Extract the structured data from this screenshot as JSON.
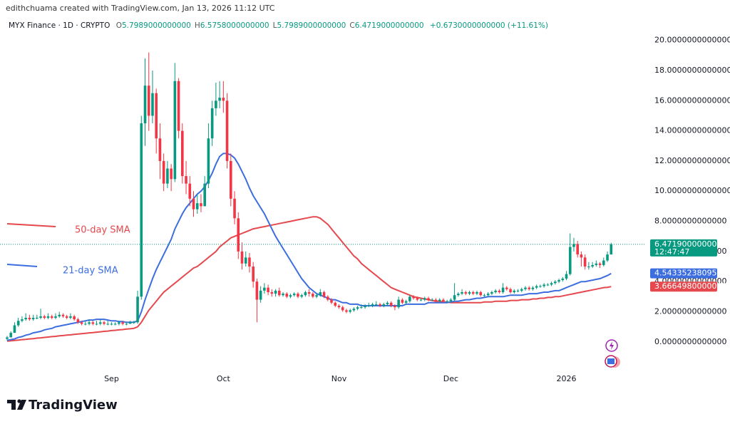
{
  "byline": "edithchuama created with TradingView.com, Jan 13, 2026 11:12 UTC",
  "logo": "TradingView",
  "chart_data": {
    "type": "candlestick",
    "title": "MYX Finance · 1D · CRYPTO",
    "ohlc_legend": [
      {
        "label": "O",
        "value": "5.7989000000000"
      },
      {
        "label": "H",
        "value": "6.5758000000000"
      },
      {
        "label": "L",
        "value": "5.7989000000000"
      },
      {
        "label": "C",
        "value": "6.4719000000000"
      }
    ],
    "change": "+0.6730000000000 (+11.61%)",
    "categories": [
      null,
      null,
      null,
      null,
      null,
      null,
      null,
      null,
      null,
      null,
      null,
      null,
      null,
      null,
      null,
      null,
      null,
      null,
      null,
      null,
      null,
      null,
      null,
      null,
      null,
      null,
      null,
      null,
      "Sep",
      null,
      null,
      null,
      null,
      null,
      null,
      null,
      null,
      null,
      null,
      null,
      null,
      null,
      null,
      null,
      null,
      null,
      null,
      null,
      null,
      null,
      null,
      null,
      null,
      null,
      null,
      null,
      null,
      null,
      "Oct",
      null,
      null,
      null,
      null,
      null,
      null,
      null,
      null,
      null,
      null,
      null,
      null,
      null,
      null,
      null,
      null,
      null,
      null,
      null,
      null,
      null,
      null,
      null,
      null,
      null,
      null,
      null,
      null,
      null,
      null,
      "Nov",
      null,
      null,
      null,
      null,
      null,
      null,
      null,
      null,
      null,
      null,
      null,
      null,
      null,
      null,
      null,
      null,
      null,
      null,
      null,
      null,
      null,
      null,
      null,
      null,
      null,
      null,
      null,
      null,
      null,
      "Dec",
      null,
      null,
      null,
      null,
      null,
      null,
      null,
      null,
      null,
      null,
      null,
      null,
      null,
      null,
      null,
      null,
      null,
      null,
      null,
      null,
      null,
      null,
      null,
      null,
      null,
      null,
      null,
      null,
      null,
      null,
      "2026",
      null,
      null,
      null,
      null,
      null,
      null,
      null,
      null,
      null,
      null,
      null,
      null
    ],
    "ohlc": {
      "up_color": "#089981",
      "down_color": "#f23645",
      "open": [
        0.2,
        0.3,
        0.6,
        1.1,
        1.4,
        1.5,
        1.6,
        1.5,
        1.6,
        1.6,
        1.7,
        1.6,
        1.7,
        1.6,
        1.7,
        1.8,
        1.7,
        1.6,
        1.7,
        1.5,
        1.3,
        1.2,
        1.2,
        1.3,
        1.2,
        1.2,
        1.3,
        1.2,
        1.2,
        1.2,
        1.2,
        1.3,
        1.2,
        1.2,
        1.3,
        1.3,
        3.0,
        14.5,
        17.0,
        15.0,
        16.5,
        13.5,
        12.0,
        10.5,
        11.5,
        10.8,
        17.3,
        14.0,
        11.0,
        10.5,
        9.5,
        8.8,
        9.2,
        9.0,
        10.5,
        13.5,
        15.5,
        16.0,
        16.2,
        16.0,
        12.0,
        9.5,
        8.2,
        6.0,
        5.2,
        5.6,
        5.0,
        4.0,
        2.8,
        3.4,
        3.6,
        3.3,
        3.2,
        3.4,
        3.1,
        3.2,
        3.0,
        3.1,
        3.2,
        3.0,
        3.1,
        3.3,
        3.2,
        3.0,
        3.1,
        3.3,
        3.0,
        2.8,
        2.6,
        2.4,
        2.3,
        2.1,
        2.0,
        2.1,
        2.2,
        2.3,
        2.3,
        2.4,
        2.4,
        2.5,
        2.5,
        2.4,
        2.5,
        2.6,
        2.4,
        2.3,
        2.8,
        2.6,
        2.7,
        3.0,
        2.9,
        2.8,
        2.8,
        2.9,
        2.8,
        2.8,
        2.7,
        2.8,
        2.7,
        2.7,
        2.8,
        3.1,
        3.2,
        3.3,
        3.2,
        3.3,
        3.2,
        3.3,
        3.1,
        3.1,
        3.2,
        3.3,
        3.4,
        3.3,
        3.6,
        3.5,
        3.3,
        3.4,
        3.4,
        3.5,
        3.6,
        3.5,
        3.6,
        3.7,
        3.7,
        3.8,
        3.8,
        3.9,
        4.0,
        4.1,
        4.2,
        4.5,
        6.3,
        6.5,
        5.8,
        5.6,
        5.0,
        5.0,
        5.1,
        5.2,
        5.1,
        5.4,
        5.7989
      ],
      "high": [
        0.4,
        0.7,
        1.3,
        1.6,
        1.7,
        1.9,
        1.8,
        1.8,
        1.8,
        2.2,
        1.8,
        1.9,
        1.8,
        1.9,
        2.0,
        1.9,
        1.8,
        1.9,
        1.8,
        1.6,
        1.4,
        1.4,
        1.5,
        1.4,
        1.4,
        1.5,
        1.4,
        1.4,
        1.3,
        1.3,
        1.4,
        1.4,
        1.3,
        1.4,
        1.4,
        3.4,
        15.0,
        18.8,
        19.2,
        18.0,
        16.8,
        14.5,
        12.5,
        12.0,
        11.8,
        18.5,
        17.5,
        14.5,
        12.0,
        11.0,
        10.0,
        9.8,
        9.8,
        11.0,
        14.5,
        16.0,
        17.2,
        17.3,
        17.3,
        16.5,
        12.5,
        10.0,
        8.6,
        6.6,
        6.0,
        5.9,
        5.3,
        4.2,
        3.7,
        3.9,
        3.8,
        3.5,
        3.5,
        3.6,
        3.3,
        3.3,
        3.2,
        3.3,
        3.3,
        3.2,
        3.4,
        3.5,
        3.3,
        3.2,
        3.5,
        3.4,
        3.1,
        2.9,
        2.7,
        2.5,
        2.4,
        2.2,
        2.2,
        2.3,
        2.4,
        2.5,
        2.5,
        2.6,
        2.6,
        2.7,
        2.6,
        2.6,
        2.7,
        2.7,
        2.5,
        3.0,
        2.9,
        2.8,
        3.1,
        3.1,
        3.0,
        2.9,
        3.0,
        3.0,
        2.9,
        2.9,
        2.9,
        2.9,
        2.8,
        2.9,
        3.9,
        3.3,
        3.5,
        3.4,
        3.4,
        3.4,
        3.4,
        3.4,
        3.2,
        3.3,
        3.4,
        3.5,
        3.5,
        3.9,
        3.7,
        3.6,
        3.5,
        3.5,
        3.6,
        3.7,
        3.7,
        3.7,
        3.8,
        3.8,
        3.9,
        3.9,
        4.0,
        4.1,
        4.2,
        4.3,
        4.7,
        7.2,
        6.9,
        6.7,
        6.0,
        5.8,
        5.3,
        5.3,
        5.4,
        5.3,
        5.6,
        6.0,
        6.5758
      ],
      "low": [
        0.1,
        0.3,
        0.6,
        1.0,
        1.3,
        1.4,
        1.4,
        1.4,
        1.5,
        1.5,
        1.5,
        1.5,
        1.5,
        1.5,
        1.6,
        1.6,
        1.5,
        1.5,
        1.4,
        1.2,
        1.1,
        1.1,
        1.1,
        1.1,
        1.1,
        1.1,
        1.1,
        1.1,
        1.1,
        1.1,
        1.1,
        1.1,
        1.1,
        1.2,
        1.2,
        1.2,
        2.8,
        13.0,
        14.0,
        14.5,
        12.5,
        10.8,
        10.0,
        10.2,
        10.0,
        10.6,
        13.5,
        10.5,
        9.8,
        9.0,
        8.3,
        8.5,
        8.6,
        9.0,
        10.2,
        13.0,
        15.0,
        15.5,
        15.2,
        11.5,
        9.0,
        7.8,
        5.5,
        4.8,
        5.0,
        4.6,
        3.6,
        1.3,
        2.6,
        3.2,
        3.1,
        3.0,
        3.0,
        3.0,
        3.0,
        2.9,
        2.9,
        3.0,
        2.9,
        2.9,
        3.0,
        3.0,
        2.9,
        2.9,
        3.0,
        2.9,
        2.7,
        2.5,
        2.3,
        2.2,
        2.0,
        1.9,
        1.9,
        2.0,
        2.1,
        2.2,
        2.2,
        2.3,
        2.3,
        2.4,
        2.3,
        2.3,
        2.4,
        2.3,
        2.1,
        2.2,
        2.5,
        2.5,
        2.6,
        2.8,
        2.7,
        2.7,
        2.7,
        2.7,
        2.7,
        2.6,
        2.6,
        2.6,
        2.6,
        2.6,
        2.7,
        3.0,
        3.1,
        3.1,
        3.1,
        3.1,
        3.1,
        3.0,
        3.0,
        3.0,
        3.1,
        3.2,
        3.2,
        3.2,
        3.4,
        3.2,
        3.2,
        3.3,
        3.3,
        3.4,
        3.4,
        3.4,
        3.5,
        3.6,
        3.6,
        3.7,
        3.7,
        3.8,
        3.9,
        4.0,
        4.1,
        4.4,
        6.0,
        5.6,
        5.0,
        4.8,
        4.8,
        4.9,
        5.0,
        4.9,
        5.0,
        5.3,
        5.7989
      ],
      "close": [
        0.3,
        0.6,
        1.1,
        1.4,
        1.5,
        1.6,
        1.5,
        1.6,
        1.6,
        1.7,
        1.6,
        1.7,
        1.6,
        1.7,
        1.8,
        1.7,
        1.6,
        1.7,
        1.5,
        1.3,
        1.2,
        1.2,
        1.3,
        1.2,
        1.2,
        1.3,
        1.2,
        1.2,
        1.2,
        1.2,
        1.3,
        1.2,
        1.2,
        1.3,
        1.3,
        3.0,
        14.5,
        17.0,
        15.0,
        16.5,
        13.5,
        12.0,
        10.5,
        11.5,
        10.8,
        17.3,
        14.0,
        11.0,
        10.5,
        9.5,
        8.8,
        9.2,
        9.0,
        10.5,
        13.5,
        15.5,
        16.0,
        16.2,
        16.0,
        12.0,
        9.5,
        8.2,
        6.0,
        5.2,
        5.6,
        5.0,
        4.0,
        2.8,
        3.4,
        3.6,
        3.3,
        3.2,
        3.4,
        3.1,
        3.2,
        3.0,
        3.1,
        3.2,
        3.0,
        3.1,
        3.3,
        3.2,
        3.0,
        3.1,
        3.3,
        3.0,
        2.8,
        2.6,
        2.4,
        2.3,
        2.1,
        2.0,
        2.1,
        2.2,
        2.3,
        2.3,
        2.4,
        2.4,
        2.5,
        2.5,
        2.4,
        2.5,
        2.6,
        2.4,
        2.3,
        2.8,
        2.6,
        2.7,
        3.0,
        2.9,
        2.8,
        2.8,
        2.9,
        2.8,
        2.8,
        2.7,
        2.8,
        2.7,
        2.7,
        2.8,
        3.1,
        3.2,
        3.3,
        3.2,
        3.3,
        3.2,
        3.3,
        3.1,
        3.1,
        3.2,
        3.3,
        3.4,
        3.3,
        3.6,
        3.5,
        3.3,
        3.4,
        3.4,
        3.5,
        3.6,
        3.5,
        3.6,
        3.7,
        3.7,
        3.8,
        3.8,
        3.9,
        4.0,
        4.1,
        4.2,
        4.5,
        6.3,
        6.5,
        5.8,
        5.6,
        5.0,
        5.0,
        5.1,
        5.2,
        5.1,
        5.4,
        5.7989,
        6.4719
      ]
    },
    "series": [
      {
        "name": "50-day SMA",
        "color": "#e5484d",
        "values": [
          0.05,
          0.07,
          0.1,
          0.12,
          0.15,
          0.17,
          0.2,
          0.22,
          0.25,
          0.27,
          0.3,
          0.32,
          0.35,
          0.37,
          0.4,
          0.42,
          0.45,
          0.47,
          0.5,
          0.52,
          0.55,
          0.57,
          0.6,
          0.62,
          0.65,
          0.67,
          0.7,
          0.72,
          0.75,
          0.77,
          0.8,
          0.82,
          0.85,
          0.87,
          0.9,
          1.0,
          1.3,
          1.7,
          2.1,
          2.4,
          2.7,
          3.0,
          3.3,
          3.5,
          3.7,
          3.9,
          4.1,
          4.3,
          4.5,
          4.7,
          4.9,
          5.0,
          5.2,
          5.4,
          5.6,
          5.8,
          6.0,
          6.3,
          6.5,
          6.7,
          6.9,
          7.0,
          7.1,
          7.2,
          7.3,
          7.4,
          7.5,
          7.55,
          7.6,
          7.65,
          7.7,
          7.75,
          7.8,
          7.85,
          7.9,
          7.95,
          8.0,
          8.05,
          8.1,
          8.15,
          8.2,
          8.25,
          8.3,
          8.3,
          8.2,
          8.0,
          7.8,
          7.5,
          7.2,
          6.9,
          6.6,
          6.3,
          6.0,
          5.7,
          5.5,
          5.2,
          5.0,
          4.8,
          4.6,
          4.4,
          4.2,
          4.0,
          3.8,
          3.6,
          3.5,
          3.4,
          3.3,
          3.2,
          3.1,
          3.0,
          2.95,
          2.9,
          2.85,
          2.8,
          2.75,
          2.7,
          2.7,
          2.65,
          2.65,
          2.6,
          2.6,
          2.6,
          2.6,
          2.6,
          2.6,
          2.6,
          2.6,
          2.6,
          2.65,
          2.65,
          2.65,
          2.7,
          2.7,
          2.7,
          2.7,
          2.75,
          2.75,
          2.75,
          2.8,
          2.8,
          2.8,
          2.85,
          2.85,
          2.9,
          2.9,
          2.95,
          2.95,
          3.0,
          3.0,
          3.05,
          3.1,
          3.15,
          3.2,
          3.25,
          3.3,
          3.35,
          3.4,
          3.45,
          3.5,
          3.55,
          3.6,
          3.62,
          3.666498
        ]
      },
      {
        "name": "21-day SMA",
        "color": "#3d6ee0",
        "values": [
          0.1,
          0.15,
          0.2,
          0.3,
          0.35,
          0.45,
          0.5,
          0.6,
          0.65,
          0.7,
          0.8,
          0.85,
          0.9,
          1.0,
          1.05,
          1.1,
          1.15,
          1.2,
          1.25,
          1.3,
          1.35,
          1.4,
          1.45,
          1.45,
          1.5,
          1.5,
          1.5,
          1.45,
          1.4,
          1.4,
          1.35,
          1.35,
          1.3,
          1.3,
          1.3,
          1.4,
          2.0,
          2.8,
          3.5,
          4.2,
          4.8,
          5.3,
          5.8,
          6.3,
          6.8,
          7.5,
          8.0,
          8.5,
          8.9,
          9.2,
          9.5,
          9.8,
          10.0,
          10.3,
          10.7,
          11.2,
          11.8,
          12.3,
          12.5,
          12.5,
          12.4,
          12.2,
          11.8,
          11.3,
          10.8,
          10.2,
          9.7,
          9.3,
          8.9,
          8.5,
          8.0,
          7.5,
          7.0,
          6.6,
          6.2,
          5.8,
          5.4,
          5.0,
          4.6,
          4.2,
          3.9,
          3.6,
          3.4,
          3.2,
          3.1,
          3.0,
          2.9,
          2.8,
          2.8,
          2.7,
          2.6,
          2.6,
          2.5,
          2.5,
          2.5,
          2.4,
          2.4,
          2.4,
          2.4,
          2.4,
          2.4,
          2.4,
          2.4,
          2.4,
          2.4,
          2.4,
          2.4,
          2.5,
          2.5,
          2.5,
          2.5,
          2.5,
          2.5,
          2.6,
          2.6,
          2.6,
          2.6,
          2.6,
          2.6,
          2.65,
          2.7,
          2.7,
          2.75,
          2.8,
          2.8,
          2.85,
          2.9,
          2.9,
          2.95,
          3.0,
          3.0,
          3.0,
          3.0,
          3.0,
          3.05,
          3.1,
          3.1,
          3.1,
          3.1,
          3.15,
          3.2,
          3.2,
          3.2,
          3.25,
          3.3,
          3.3,
          3.35,
          3.4,
          3.4,
          3.5,
          3.6,
          3.7,
          3.8,
          3.9,
          4.0,
          4.0,
          4.05,
          4.1,
          4.15,
          4.2,
          4.3,
          4.4,
          4.5433523809524
        ]
      }
    ],
    "legend": "left",
    "ylim": [
      -1.9,
      20.6
    ],
    "yticks": [
      {
        "value": 0,
        "label": "0.0000000000000"
      },
      {
        "value": 2,
        "label": "2.0000000000000"
      },
      {
        "value": 4,
        "label": "4.0000000000000"
      },
      {
        "value": 6,
        "label": "6.0000000000000"
      },
      {
        "value": 8,
        "label": "8.0000000000000"
      },
      {
        "value": 10,
        "label": "10.0000000000000"
      },
      {
        "value": 12,
        "label": "12.0000000000000"
      },
      {
        "value": 14,
        "label": "14.0000000000000"
      },
      {
        "value": 16,
        "label": "16.0000000000000"
      },
      {
        "value": 18,
        "label": "18.0000000000000"
      },
      {
        "value": 20,
        "label": "20.0000000000000"
      }
    ],
    "grid": false,
    "price_tags": [
      {
        "value": 6.4719,
        "label": "6.4719000000000",
        "sublabel": "12:47:47",
        "color": "#089981"
      },
      {
        "value": 4.5433523809524,
        "label": "4.5433523809524",
        "color": "#3d6ee0"
      },
      {
        "value": 3.666498,
        "label": "3.6664980000000",
        "color": "#e5484d"
      }
    ]
  }
}
